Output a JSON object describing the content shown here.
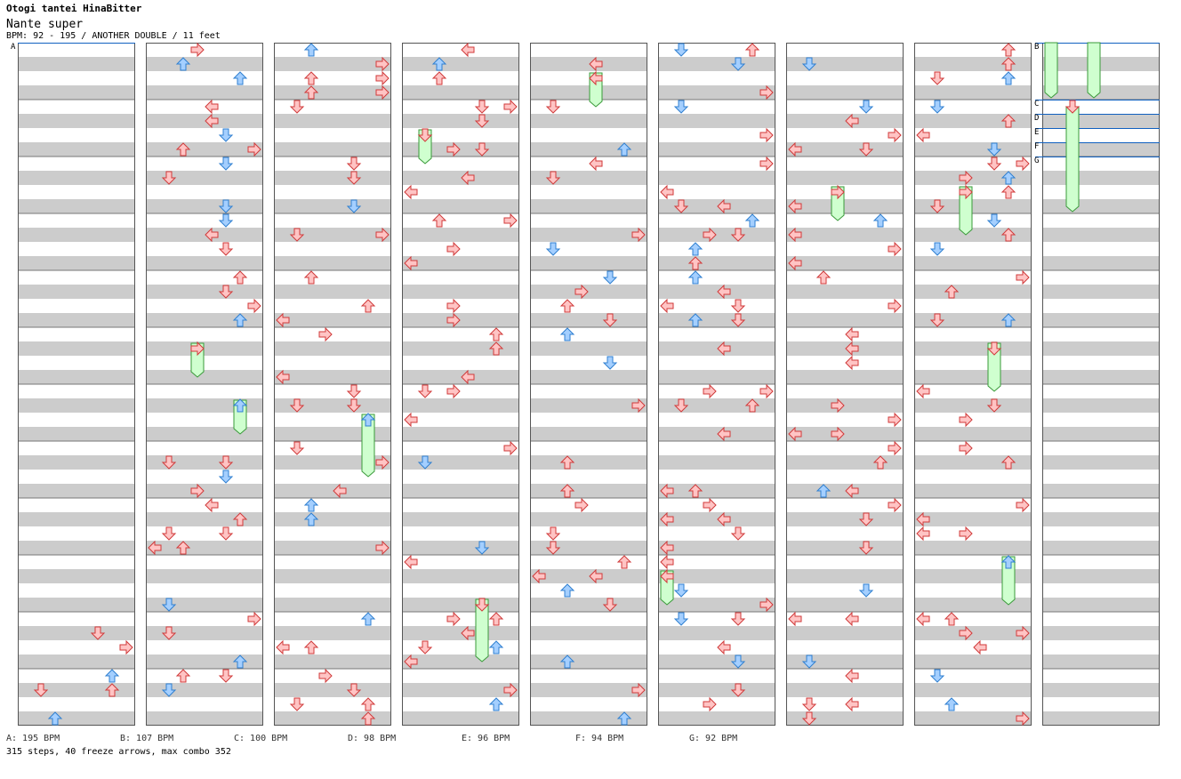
{
  "header": {
    "title": "Otogi tantei HinaBitter",
    "subtitle": "Nante super",
    "info": "BPM: 92 - 195 / ANOTHER DOUBLE / 11 feet"
  },
  "section_markers": [
    "A",
    "B",
    "C",
    "D",
    "E",
    "F",
    "G"
  ],
  "bpm_legend": [
    "A: 195 BPM",
    "B: 107 BPM",
    "C: 100 BPM",
    "D: 98 BPM",
    "E: 96 BPM",
    "F: 94 BPM",
    "G: 92 BPM"
  ],
  "stats": "315 steps, 40 freeze arrows, max combo 352",
  "column_count": 9,
  "measures_per_column": 12,
  "colors": {
    "stripe": "#cccccc",
    "blue_arrow": "#a4cfff",
    "blue_stroke": "#2f7fd0",
    "red_arrow": "#ffc4c4",
    "red_stroke": "#d03a3a",
    "freeze": "#cfffcf",
    "freeze_stroke": "#3a9a3a",
    "marker_line": "#1060c0"
  }
}
